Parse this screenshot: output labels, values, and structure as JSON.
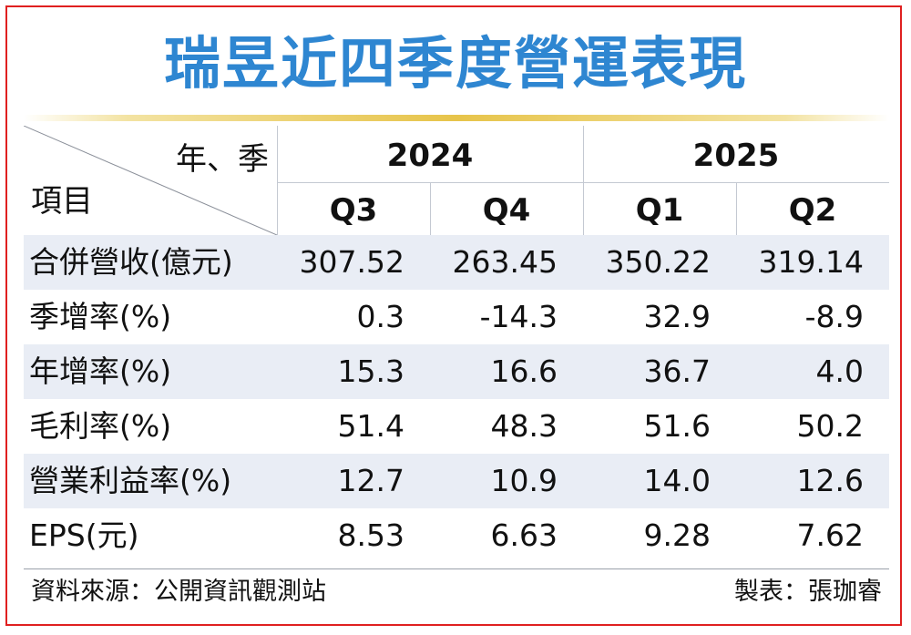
{
  "title": "瑞昱近四季度營運表現",
  "header": {
    "corner_top": "年、季",
    "corner_bottom": "項目",
    "years": [
      {
        "label": "2024",
        "quarters": [
          "Q3",
          "Q4"
        ]
      },
      {
        "label": "2025",
        "quarters": [
          "Q1",
          "Q2"
        ]
      }
    ]
  },
  "rows": [
    {
      "label": "合併營收(億元)",
      "values": [
        "307.52",
        "263.45",
        "350.22",
        "319.14"
      ]
    },
    {
      "label": "季增率(%)",
      "values": [
        "0.3",
        "-14.3",
        "32.9",
        "-8.9"
      ]
    },
    {
      "label": "年增率(%)",
      "values": [
        "15.3",
        "16.6",
        "36.7",
        "4.0"
      ]
    },
    {
      "label": "毛利率(%)",
      "values": [
        "51.4",
        "48.3",
        "51.6",
        "50.2"
      ]
    },
    {
      "label": "營業利益率(%)",
      "values": [
        "12.7",
        "10.9",
        "14.0",
        "12.6"
      ]
    },
    {
      "label": "EPS(元)",
      "values": [
        "8.53",
        "6.63",
        "9.28",
        "7.62"
      ]
    }
  ],
  "footer": {
    "source": "資料來源：公開資訊觀測站",
    "credit": "製表：張珈睿"
  },
  "colors": {
    "title": "#2e86d1",
    "border": "#e02020",
    "rule": "#e7c44a",
    "row_shade": "#e9edf5"
  }
}
